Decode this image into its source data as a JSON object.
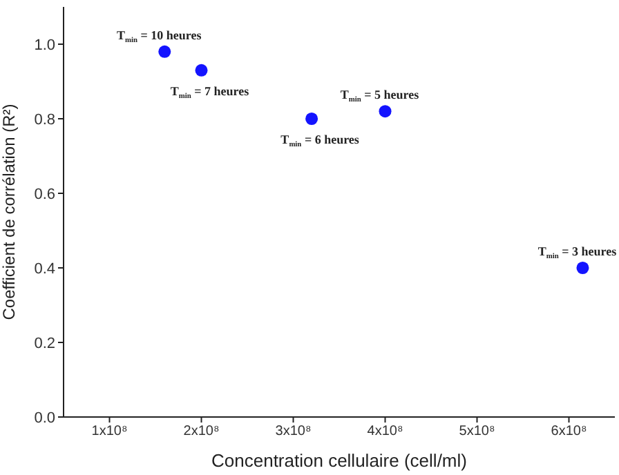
{
  "chart_data": {
    "type": "scatter",
    "xlabel": "Concentration cellulaire (cell/ml)",
    "ylabel": "Coefficient de corrélation (R²)",
    "x": [
      160000000,
      200000000,
      320000000,
      400000000,
      615000000
    ],
    "series": [
      {
        "color": "#1414ff",
        "values": [
          0.98,
          0.93,
          0.8,
          0.82,
          0.4
        ]
      }
    ],
    "marker": "circle",
    "xlim": [
      50000000,
      650000000
    ],
    "xticks": [
      {
        "value": 100000000,
        "label": "1x10⁸"
      },
      {
        "value": 200000000,
        "label": "2x10⁸"
      },
      {
        "value": 300000000,
        "label": "3x10⁸"
      },
      {
        "value": 400000000,
        "label": "4x10⁸"
      },
      {
        "value": 500000000,
        "label": "5x10⁸"
      },
      {
        "value": 600000000,
        "label": "6x10⁸"
      }
    ],
    "ylim": [
      0,
      1.1
    ],
    "yticks": [
      {
        "value": 0,
        "label": "0.0"
      },
      {
        "value": 0.2,
        "label": "0.2"
      },
      {
        "value": 0.4,
        "label": "0.4"
      },
      {
        "value": 0.6,
        "label": "0.6"
      },
      {
        "value": 0.8,
        "label": "0.8"
      },
      {
        "value": 1,
        "label": "1.0"
      }
    ],
    "annotations": [
      {
        "text": "T$_{min}$ = 10 heures",
        "x": 160000000,
        "y": 0.98
      },
      {
        "text": "T$_{min}$ = 7 heures",
        "x": 200000000,
        "y": 0.93
      },
      {
        "text": "T$_{min}$ = 6 heures",
        "x": 320000000,
        "y": 0.8
      },
      {
        "text": "T$_{min}$ = 5 heures",
        "x": 400000000,
        "y": 0.82
      },
      {
        "text": "T$_{min}$ = 3 heures",
        "x": 615000000,
        "y": 0.4
      }
    ],
    "grid": false
  }
}
